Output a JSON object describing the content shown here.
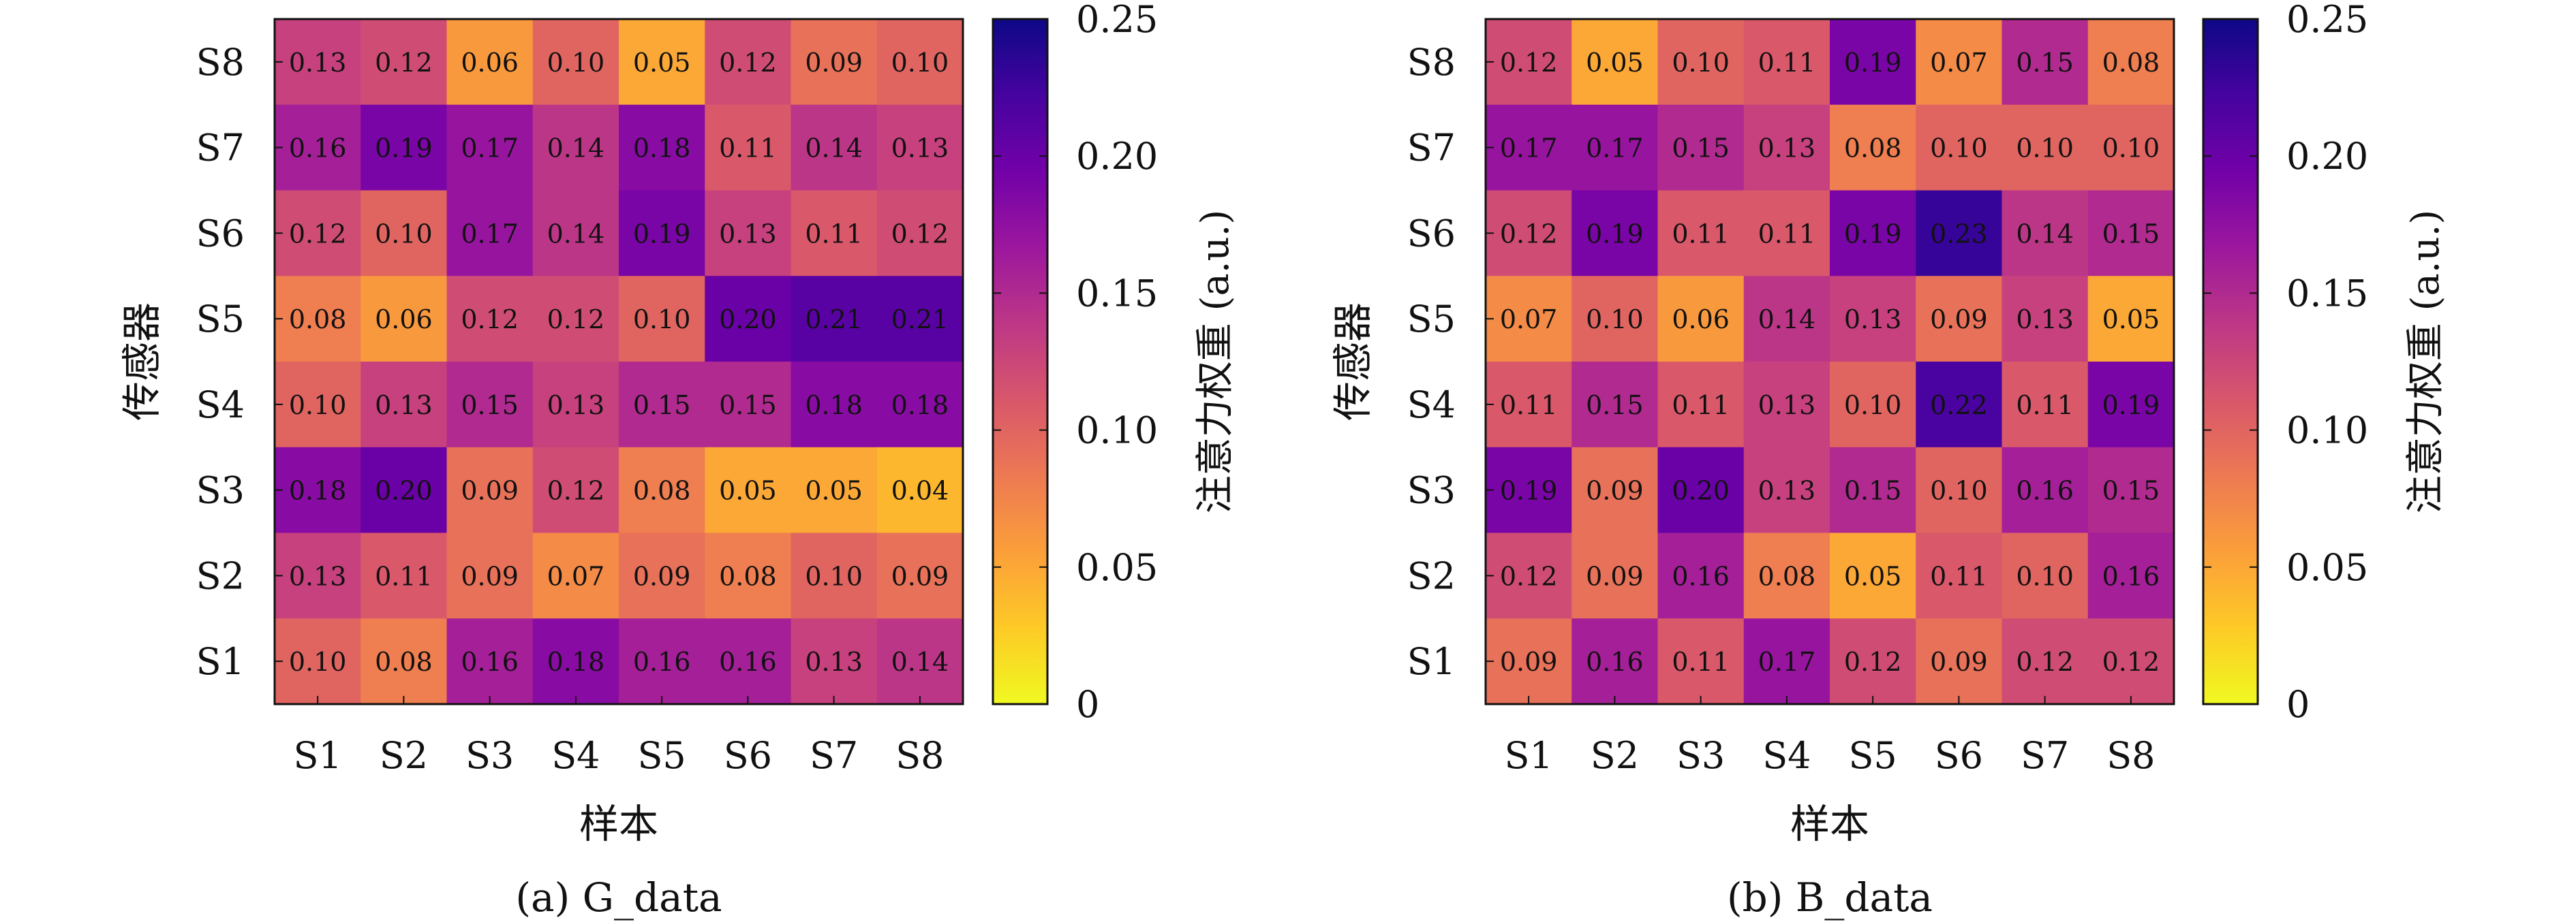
{
  "colorbar_ticks": [
    "0",
    "0.05",
    "0.10",
    "0.15",
    "0.20",
    "0.25"
  ],
  "colormap_stops": [
    "#f0f921",
    "#fdca26",
    "#fb9f3a",
    "#ed7953",
    "#d8576b",
    "#bd3786",
    "#9c179e",
    "#7201a8",
    "#46039f",
    "#0d0887"
  ],
  "chart_data": [
    {
      "type": "heatmap",
      "caption": "(a) G_data",
      "xlabel": "样本",
      "ylabel": "传感器",
      "colorbar_label": "注意力权重 (a.u.)",
      "x_categories": [
        "S1",
        "S2",
        "S3",
        "S4",
        "S5",
        "S6",
        "S7",
        "S8"
      ],
      "y_categories": [
        "S1",
        "S2",
        "S3",
        "S4",
        "S5",
        "S6",
        "S7",
        "S8"
      ],
      "value_range": [
        0,
        0.25
      ],
      "rows": [
        {
          "sensor": "S8",
          "values": [
            0.13,
            0.12,
            0.06,
            0.1,
            0.05,
            0.12,
            0.09,
            0.1
          ],
          "labels": [
            "0.13",
            "0.12",
            "0.06",
            "0.10",
            "0.05",
            "0.12",
            "0.09",
            "0.10"
          ]
        },
        {
          "sensor": "S7",
          "values": [
            0.16,
            0.19,
            0.17,
            0.14,
            0.18,
            0.11,
            0.14,
            0.13
          ],
          "labels": [
            "0.16",
            "0.19",
            "0.17",
            "0.14",
            "0.18",
            "0.11",
            "0.14",
            "0.13"
          ]
        },
        {
          "sensor": "S6",
          "values": [
            0.12,
            0.1,
            0.17,
            0.14,
            0.19,
            0.13,
            0.11,
            0.12
          ],
          "labels": [
            "0.12",
            "0.10",
            "0.17",
            "0.14",
            "0.19",
            "0.13",
            "0.11",
            "0.12"
          ]
        },
        {
          "sensor": "S5",
          "values": [
            0.08,
            0.06,
            0.12,
            0.12,
            0.1,
            0.2,
            0.21,
            0.21
          ],
          "labels": [
            "0.08",
            "0.06",
            "0.12",
            "0.12",
            "0.10",
            "0.20",
            "0.21",
            "0.21"
          ]
        },
        {
          "sensor": "S4",
          "values": [
            0.1,
            0.13,
            0.15,
            0.13,
            0.15,
            0.15,
            0.18,
            0.18
          ],
          "labels": [
            "0.10",
            "0.13",
            "0.15",
            "0.13",
            "0.15",
            "0.15",
            "0.18",
            "0.18"
          ]
        },
        {
          "sensor": "S3",
          "values": [
            0.18,
            0.2,
            0.09,
            0.12,
            0.08,
            0.05,
            0.05,
            0.04
          ],
          "labels": [
            "0.18",
            "0.20",
            "0.09",
            "0.12",
            "0.08",
            "0.05",
            "0.05",
            "0.04"
          ]
        },
        {
          "sensor": "S2",
          "values": [
            0.13,
            0.11,
            0.09,
            0.07,
            0.09,
            0.08,
            0.1,
            0.09
          ],
          "labels": [
            "0.13",
            "0.11",
            "0.09",
            "0.07",
            "0.09",
            "0.08",
            "0.10",
            "0.09"
          ]
        },
        {
          "sensor": "S1",
          "values": [
            0.1,
            0.08,
            0.16,
            0.18,
            0.16,
            0.16,
            0.13,
            0.14
          ],
          "labels": [
            "0.10",
            "0.08",
            "0.16",
            "0.18",
            "0.16",
            "0.16",
            "0.13",
            "0.14"
          ]
        }
      ]
    },
    {
      "type": "heatmap",
      "caption": "(b) B_data",
      "xlabel": "样本",
      "ylabel": "传感器",
      "colorbar_label": "注意力权重 (a.u.)",
      "x_categories": [
        "S1",
        "S2",
        "S3",
        "S4",
        "S5",
        "S6",
        "S7",
        "S8"
      ],
      "y_categories": [
        "S1",
        "S2",
        "S3",
        "S4",
        "S5",
        "S6",
        "S7",
        "S8"
      ],
      "value_range": [
        0,
        0.25
      ],
      "rows": [
        {
          "sensor": "S8",
          "values": [
            0.12,
            0.05,
            0.1,
            0.11,
            0.19,
            0.07,
            0.15,
            0.08
          ],
          "labels": [
            "0.12",
            "0.05",
            "0.10",
            "0.11",
            "0.19",
            "0.07",
            "0.15",
            "0.08"
          ]
        },
        {
          "sensor": "S7",
          "values": [
            0.17,
            0.17,
            0.15,
            0.13,
            0.08,
            0.1,
            0.1,
            0.1
          ],
          "labels": [
            "0.17",
            "0.17",
            "0.15",
            "0.13",
            "0.08",
            "0.10",
            "0.10",
            "0.10"
          ]
        },
        {
          "sensor": "S6",
          "values": [
            0.12,
            0.19,
            0.11,
            0.11,
            0.19,
            0.23,
            0.14,
            0.15
          ],
          "labels": [
            "0.12",
            "0.19",
            "0.11",
            "0.11",
            "0.19",
            "0.23",
            "0.14",
            "0.15"
          ]
        },
        {
          "sensor": "S5",
          "values": [
            0.07,
            0.1,
            0.06,
            0.14,
            0.13,
            0.09,
            0.13,
            0.05
          ],
          "labels": [
            "0.07",
            "0.10",
            "0.06",
            "0.14",
            "0.13",
            "0.09",
            "0.13",
            "0.05"
          ]
        },
        {
          "sensor": "S4",
          "values": [
            0.11,
            0.15,
            0.11,
            0.13,
            0.1,
            0.22,
            0.11,
            0.19
          ],
          "labels": [
            "0.11",
            "0.15",
            "0.11",
            "0.13",
            "0.10",
            "0.22",
            "0.11",
            "0.19"
          ]
        },
        {
          "sensor": "S3",
          "values": [
            0.19,
            0.09,
            0.2,
            0.13,
            0.15,
            0.1,
            0.16,
            0.15
          ],
          "labels": [
            "0.19",
            "0.09",
            "0.20",
            "0.13",
            "0.15",
            "0.10",
            "0.16",
            "0.15"
          ]
        },
        {
          "sensor": "S2",
          "values": [
            0.12,
            0.09,
            0.16,
            0.08,
            0.05,
            0.11,
            0.1,
            0.16
          ],
          "labels": [
            "0.12",
            "0.09",
            "0.16",
            "0.08",
            "0.05",
            "0.11",
            "0.10",
            "0.16"
          ]
        },
        {
          "sensor": "S1",
          "values": [
            0.09,
            0.16,
            0.11,
            0.17,
            0.12,
            0.09,
            0.12,
            0.12
          ],
          "labels": [
            "0.09",
            "0.16",
            "0.11",
            "0.17",
            "0.12",
            "0.09",
            "0.12",
            "0.12"
          ]
        }
      ]
    }
  ]
}
